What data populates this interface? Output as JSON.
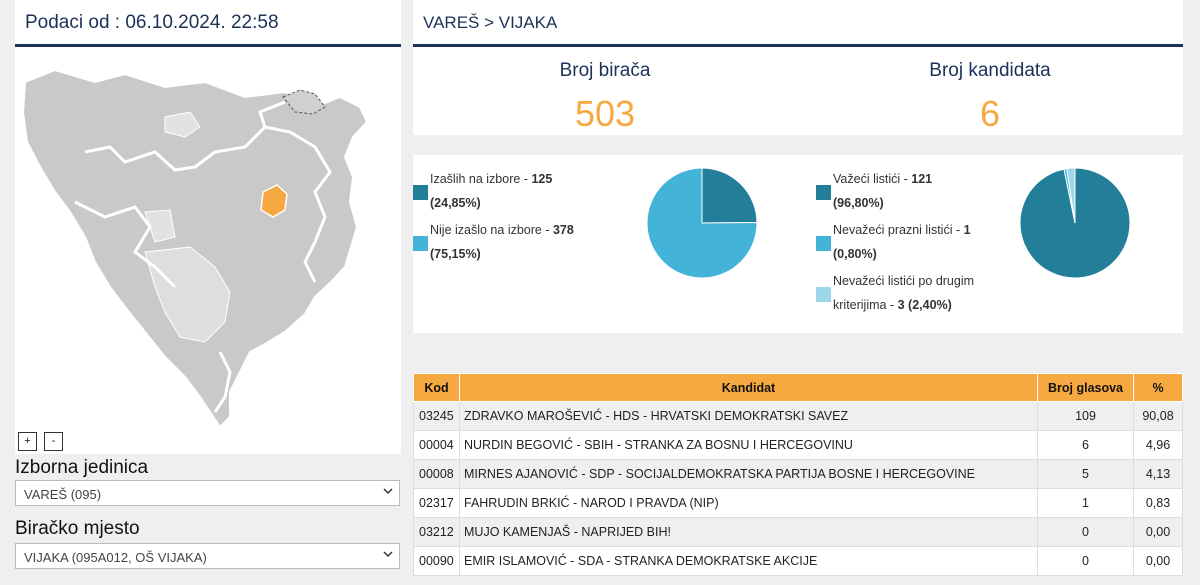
{
  "left": {
    "header": "Podaci od : 06.10.2024. 22:58",
    "zoom_in": "+",
    "zoom_out": "-",
    "izborna_label": "Izborna jedinica",
    "izborna_value": "VAREŠ (095)",
    "biracko_label": "Biračko mjesto",
    "biracko_value": "VIJAKA (095A012, OŠ VIJAKA)"
  },
  "right": {
    "breadcrumb": "VAREŠ > VIJAKA",
    "voters_label": "Broj birača",
    "voters_value": "503",
    "candidates_label": "Broj kandidata",
    "candidates_value": "6"
  },
  "turnout": {
    "items": [
      {
        "label": "Izašlih na izbore - ",
        "count": "125",
        "pct": "(24,85%)",
        "fraction": 0.2485,
        "color": "#237f99"
      },
      {
        "label": "Nije izašlo na izbore - ",
        "count": "378",
        "pct": "(75,15%)",
        "fraction": 0.7515,
        "color": "#43b3d7"
      }
    ]
  },
  "ballots": {
    "items": [
      {
        "label": "Važeći listići - ",
        "count": "121",
        "pct": "(96,80%)",
        "fraction": 0.968,
        "color": "#237f99"
      },
      {
        "label": "Nevažeći prazni listići - ",
        "count": "1",
        "pct": "(0,80%)",
        "fraction": 0.008,
        "color": "#43b3d7"
      },
      {
        "label_1": "Nevažeći listići po drugim",
        "label_2": "kriterijima - ",
        "count": "3",
        "pct": "(2,40%)",
        "fraction": 0.024,
        "color": "#9ed6ea"
      }
    ]
  },
  "table": {
    "headers": [
      "Kod",
      "Kandidat",
      "Broj glasova",
      "%"
    ],
    "rows": [
      {
        "code": "03245",
        "name": "ZDRAVKO MAROŠEVIĆ - HDS - HRVATSKI DEMOKRATSKI SAVEZ",
        "votes": "109",
        "pct": "90,08"
      },
      {
        "code": "00004",
        "name": "NURDIN BEGOVIĆ - SBIH - STRANKA ZA BOSNU I HERCEGOVINU",
        "votes": "6",
        "pct": "4,96"
      },
      {
        "code": "00008",
        "name": "MIRNES AJANOVIĆ - SDP - SOCIJALDEMOKRATSKA PARTIJA BOSNE I HERCEGOVINE",
        "votes": "5",
        "pct": "4,13"
      },
      {
        "code": "02317",
        "name": "FAHRUDIN BRKIĆ - NAROD I PRAVDA (NIP)",
        "votes": "1",
        "pct": "0,83"
      },
      {
        "code": "03212",
        "name": "MUJO KAMENJAŠ - NAPRIJED BIH!",
        "votes": "0",
        "pct": "0,00"
      },
      {
        "code": "00090",
        "name": "EMIR ISLAMOVIĆ - SDA - STRANKA DEMOKRATSKE AKCIJE",
        "votes": "0",
        "pct": "0,00"
      }
    ]
  }
}
